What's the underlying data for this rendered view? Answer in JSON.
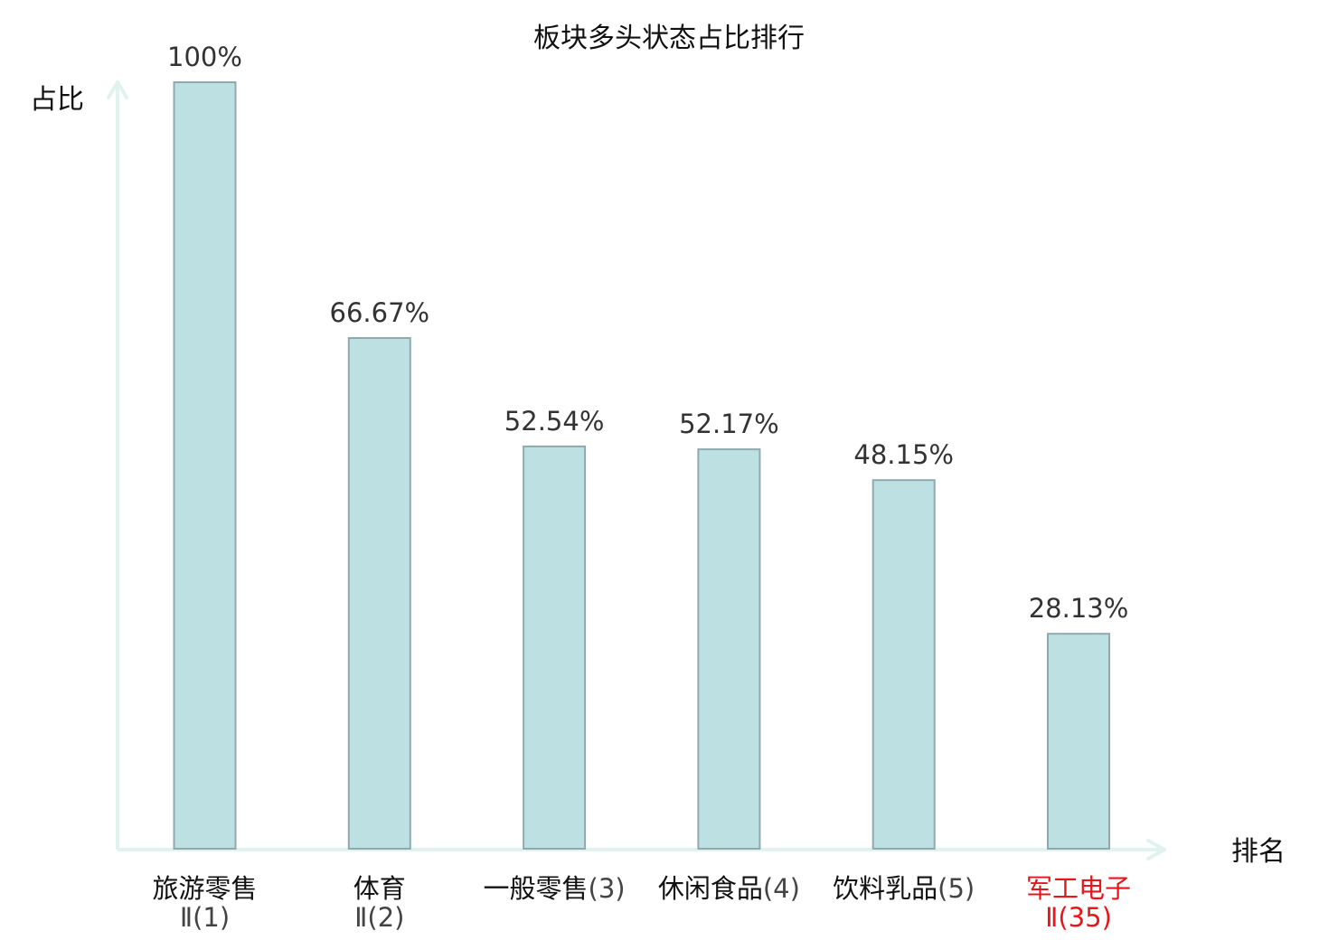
{
  "chart_data": {
    "type": "bar",
    "title": "板块多头状态占比排行",
    "ylabel": "占比",
    "xlabel": "排名",
    "ylim": [
      0,
      100
    ],
    "grid": false,
    "categories": [
      {
        "name": "旅游零售",
        "rank": "Ⅱ(1)",
        "highlight": false
      },
      {
        "name": "体育",
        "rank": "Ⅱ(2)",
        "highlight": false
      },
      {
        "name": "一般零售",
        "rank": "(3)",
        "highlight": false
      },
      {
        "name": "休闲食品",
        "rank": "(4)",
        "highlight": false
      },
      {
        "name": "饮料乳品",
        "rank": "(5)",
        "highlight": false
      },
      {
        "name": "军工电子",
        "rank": "Ⅱ(35)",
        "highlight": true
      }
    ],
    "values": [
      100,
      66.67,
      52.54,
      52.17,
      48.15,
      28.13
    ],
    "value_labels": [
      "100%",
      "66.67%",
      "52.54%",
      "52.17%",
      "48.15%",
      "28.13%"
    ]
  },
  "colors": {
    "bar_fill": "#bde1e3",
    "bar_stroke": "#8fa9ad",
    "axis": "#e1f3ef",
    "text": "#111111",
    "value_text": "#333333",
    "rank_text": "#444444",
    "highlight": "#e8161b"
  }
}
